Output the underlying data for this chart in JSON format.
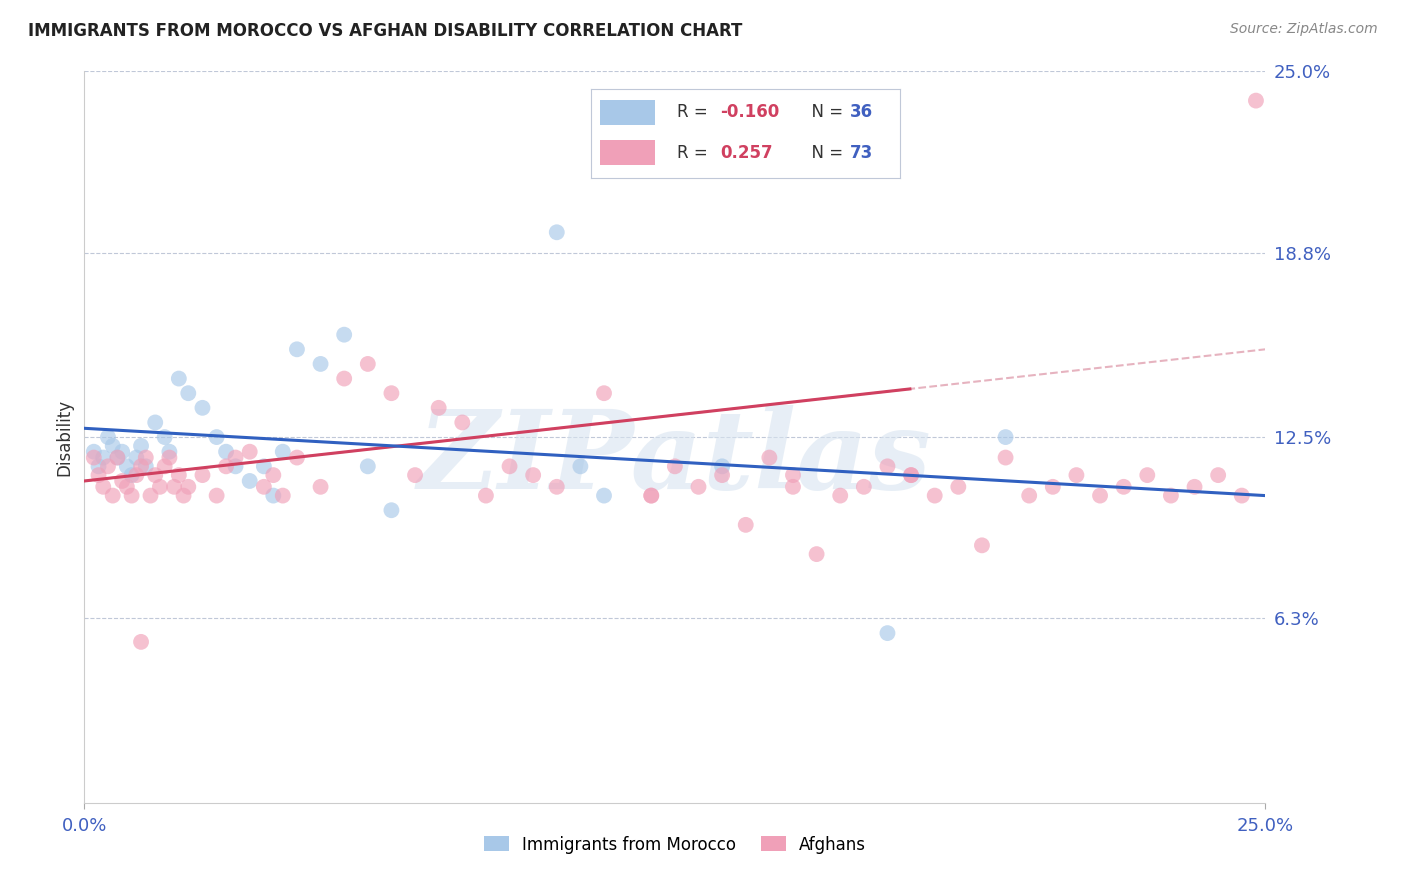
{
  "title": "IMMIGRANTS FROM MOROCCO VS AFGHAN DISABILITY CORRELATION CHART",
  "source": "Source: ZipAtlas.com",
  "ylabel": "Disability",
  "morocco_color": "#a8c8e8",
  "afghan_color": "#f0a0b8",
  "morocco_line_color": "#3060c0",
  "afghan_line_color": "#d04060",
  "afghan_dash_color": "#e0a0b0",
  "morocco_R": -0.16,
  "morocco_N": 36,
  "afghan_R": 0.257,
  "afghan_N": 73,
  "morocco_label": "Immigrants from Morocco",
  "afghan_label": "Afghans",
  "watermark": "ZIPatlas",
  "xmin": 0.0,
  "xmax": 0.25,
  "ymin": 0.0,
  "ymax": 0.25,
  "ytick_values": [
    0.25,
    0.188,
    0.125,
    0.063
  ],
  "ytick_labels": [
    "25.0%",
    "18.8%",
    "12.5%",
    "6.3%"
  ],
  "morocco_x": [
    0.002,
    0.003,
    0.004,
    0.005,
    0.006,
    0.007,
    0.008,
    0.009,
    0.01,
    0.011,
    0.012,
    0.013,
    0.015,
    0.017,
    0.018,
    0.02,
    0.022,
    0.025,
    0.028,
    0.03,
    0.032,
    0.035,
    0.038,
    0.04,
    0.042,
    0.045,
    0.05,
    0.055,
    0.06,
    0.065,
    0.1,
    0.105,
    0.11,
    0.135,
    0.17,
    0.195
  ],
  "morocco_y": [
    0.12,
    0.115,
    0.118,
    0.125,
    0.122,
    0.118,
    0.12,
    0.115,
    0.112,
    0.118,
    0.122,
    0.115,
    0.13,
    0.125,
    0.12,
    0.145,
    0.14,
    0.135,
    0.125,
    0.12,
    0.115,
    0.11,
    0.115,
    0.105,
    0.12,
    0.155,
    0.15,
    0.16,
    0.115,
    0.1,
    0.195,
    0.115,
    0.105,
    0.115,
    0.058,
    0.125
  ],
  "afghan_x": [
    0.002,
    0.003,
    0.004,
    0.005,
    0.006,
    0.007,
    0.008,
    0.009,
    0.01,
    0.011,
    0.012,
    0.013,
    0.014,
    0.015,
    0.016,
    0.017,
    0.018,
    0.019,
    0.02,
    0.021,
    0.022,
    0.025,
    0.028,
    0.03,
    0.032,
    0.035,
    0.038,
    0.04,
    0.042,
    0.045,
    0.05,
    0.055,
    0.06,
    0.065,
    0.07,
    0.075,
    0.08,
    0.085,
    0.09,
    0.095,
    0.1,
    0.11,
    0.12,
    0.125,
    0.13,
    0.135,
    0.14,
    0.145,
    0.15,
    0.155,
    0.16,
    0.165,
    0.17,
    0.175,
    0.18,
    0.185,
    0.19,
    0.195,
    0.2,
    0.205,
    0.21,
    0.215,
    0.22,
    0.225,
    0.23,
    0.235,
    0.24,
    0.245,
    0.248,
    0.12,
    0.15,
    0.175,
    0.012
  ],
  "afghan_y": [
    0.118,
    0.112,
    0.108,
    0.115,
    0.105,
    0.118,
    0.11,
    0.108,
    0.105,
    0.112,
    0.115,
    0.118,
    0.105,
    0.112,
    0.108,
    0.115,
    0.118,
    0.108,
    0.112,
    0.105,
    0.108,
    0.112,
    0.105,
    0.115,
    0.118,
    0.12,
    0.108,
    0.112,
    0.105,
    0.118,
    0.108,
    0.145,
    0.15,
    0.14,
    0.112,
    0.135,
    0.13,
    0.105,
    0.115,
    0.112,
    0.108,
    0.14,
    0.105,
    0.115,
    0.108,
    0.112,
    0.095,
    0.118,
    0.112,
    0.085,
    0.105,
    0.108,
    0.115,
    0.112,
    0.105,
    0.108,
    0.088,
    0.118,
    0.105,
    0.108,
    0.112,
    0.105,
    0.108,
    0.112,
    0.105,
    0.108,
    0.112,
    0.105,
    0.24,
    0.105,
    0.108,
    0.112,
    0.055
  ]
}
